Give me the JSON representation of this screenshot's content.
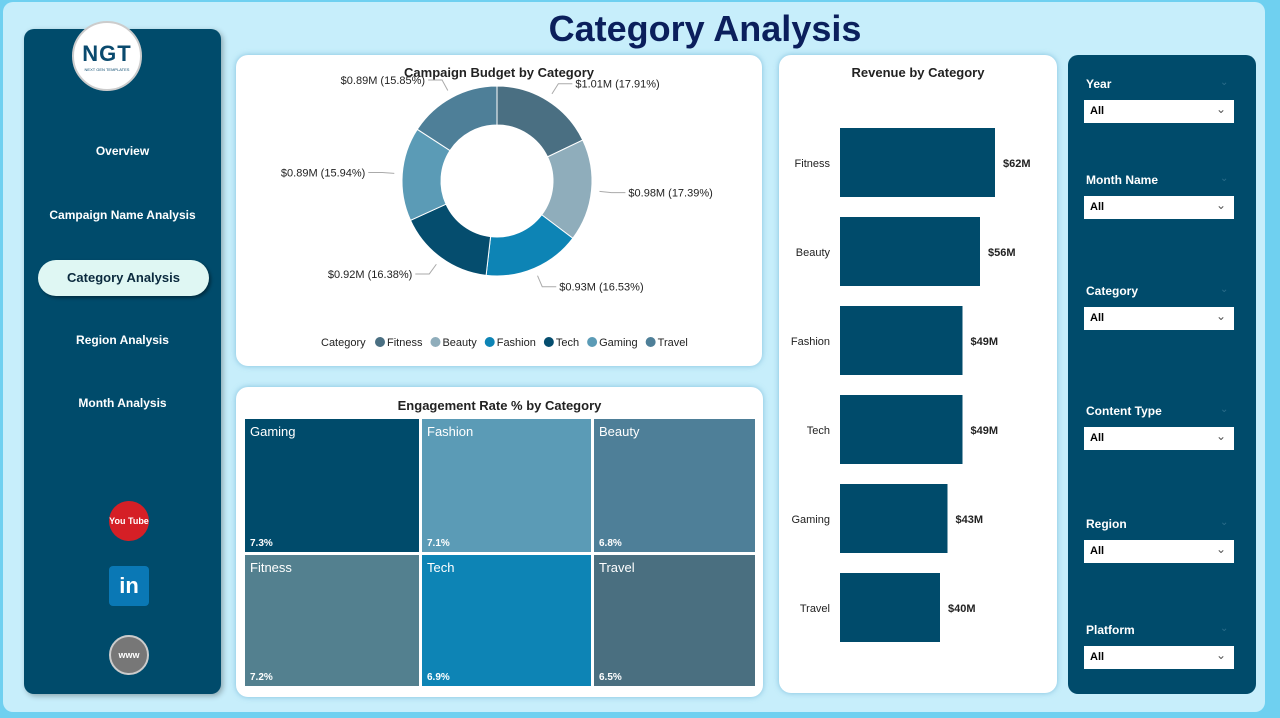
{
  "header": {
    "title": "Category Analysis"
  },
  "logo": {
    "text": "NGT",
    "sub": "NEXT GEN TEMPLATES"
  },
  "sidebar": {
    "items": [
      {
        "label": "Overview"
      },
      {
        "label": "Campaign Name Analysis"
      },
      {
        "label": "Category Analysis",
        "active": true
      },
      {
        "label": "Region Analysis"
      },
      {
        "label": "Month Analysis"
      }
    ],
    "social": [
      {
        "icon": "youtube-icon",
        "label": "You Tube"
      },
      {
        "icon": "linkedin-icon",
        "label": "in"
      },
      {
        "icon": "globe-icon",
        "label": "www"
      }
    ]
  },
  "filters": [
    {
      "label": "Year",
      "value": "All"
    },
    {
      "label": "Month Name",
      "value": "All"
    },
    {
      "label": "Category",
      "value": "All"
    },
    {
      "label": "Content Type",
      "value": "All"
    },
    {
      "label": "Region",
      "value": "All"
    },
    {
      "label": "Platform",
      "value": "All"
    }
  ],
  "chart_data": [
    {
      "type": "pie",
      "title": "Campaign Budget by Category",
      "legend_title": "Category",
      "legend_position": "bottom",
      "donut": true,
      "categories": [
        "Fitness",
        "Beauty",
        "Fashion",
        "Tech",
        "Gaming",
        "Travel"
      ],
      "values": [
        1.01,
        0.98,
        0.93,
        0.92,
        0.89,
        0.89
      ],
      "percents": [
        17.91,
        17.39,
        16.53,
        16.38,
        15.94,
        15.85
      ],
      "labels": [
        "$1.01M (17.91%)",
        "$0.98M (17.39%)",
        "$0.93M (16.53%)",
        "$0.92M (16.38%)",
        "$0.89M (15.94%)",
        "$0.89M (15.85%)"
      ],
      "colors": [
        "#4a6f82",
        "#8fadbb",
        "#0d84b5",
        "#054d6e",
        "#5b9bb6",
        "#4e7f98"
      ]
    },
    {
      "type": "bar",
      "orientation": "horizontal",
      "title": "Revenue by Category",
      "categories": [
        "Fitness",
        "Beauty",
        "Fashion",
        "Tech",
        "Gaming",
        "Travel"
      ],
      "values": [
        62,
        56,
        49,
        49,
        43,
        40
      ],
      "labels": [
        "$62M",
        "$56M",
        "$49M",
        "$49M",
        "$43M",
        "$40M"
      ],
      "color": "#004b6b"
    },
    {
      "type": "treemap",
      "title": "Engagement Rate % by Category",
      "categories": [
        "Gaming",
        "Fashion",
        "Beauty",
        "Fitness",
        "Tech",
        "Travel"
      ],
      "values": [
        7.3,
        7.1,
        6.8,
        7.2,
        6.9,
        6.5
      ],
      "labels": [
        "7.3%",
        "7.1%",
        "6.8%",
        "7.2%",
        "6.9%",
        "6.5%"
      ],
      "colors": [
        "#004b6b",
        "#5b9bb6",
        "#4e7f98",
        "#53808f",
        "#0d84b5",
        "#4a6f80"
      ]
    }
  ]
}
